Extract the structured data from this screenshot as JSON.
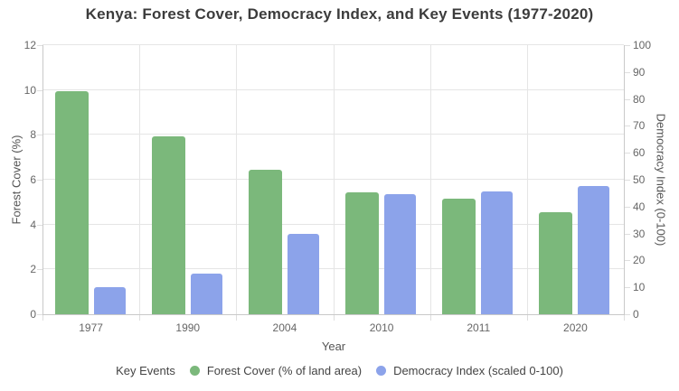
{
  "chart_data": {
    "type": "bar",
    "title": "Kenya: Forest Cover, Democracy Index, and Key Events (1977-2020)",
    "categories": [
      "1977",
      "1990",
      "2004",
      "2010",
      "2011",
      "2020"
    ],
    "series": [
      {
        "name": "Forest Cover (% of land area)",
        "axis": "left",
        "color": "#7bb87b",
        "values": [
          9.95,
          7.95,
          6.45,
          5.45,
          5.15,
          4.55
        ]
      },
      {
        "name": "Democracy Index (scaled 0-100)",
        "axis": "right",
        "color": "#8ca3ea",
        "values": [
          10,
          15,
          30,
          44.5,
          45.5,
          47.5
        ]
      }
    ],
    "xlabel": "Year",
    "ylabel_left": "Forest Cover (%)",
    "ylabel_right": "Democracy Index (0-100)",
    "ylim_left": [
      0,
      12
    ],
    "ylim_right": [
      0,
      100
    ],
    "yticks_left": [
      0,
      2,
      4,
      6,
      8,
      10,
      12
    ],
    "yticks_right": [
      0,
      10,
      20,
      30,
      40,
      50,
      60,
      70,
      80,
      90,
      100
    ],
    "grid": true,
    "legend": {
      "position": "bottom",
      "items": [
        {
          "label": "Key Events",
          "marker": null
        },
        {
          "label": "Forest Cover (% of land area)",
          "marker": "#7bb87b"
        },
        {
          "label": "Democracy Index (scaled 0-100)",
          "marker": "#8ca3ea"
        }
      ]
    }
  }
}
